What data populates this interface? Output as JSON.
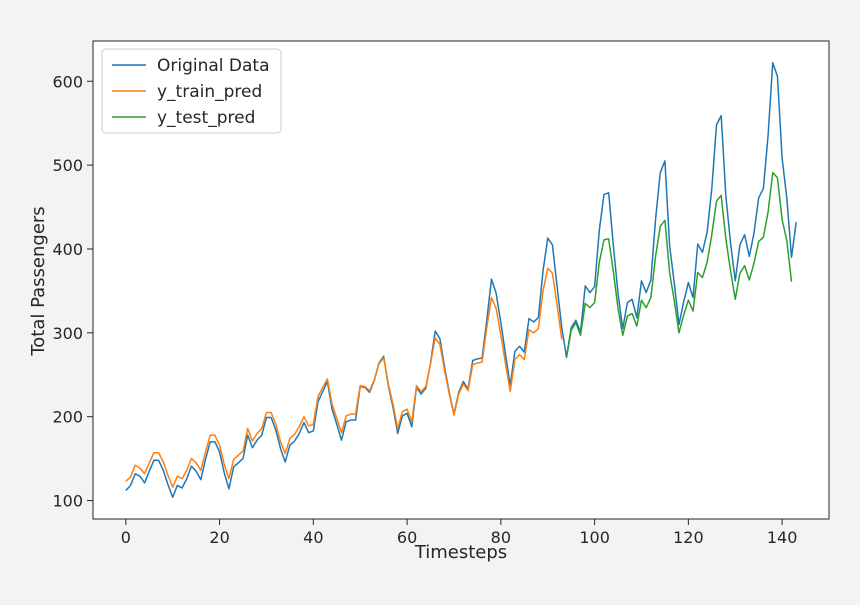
{
  "chart_data": {
    "type": "line",
    "title": "",
    "xlabel": "Timesteps",
    "ylabel": "Total Passengers",
    "xlim": [
      -7,
      150
    ],
    "ylim": [
      78,
      648
    ],
    "xticks": [
      0,
      20,
      40,
      60,
      80,
      100,
      120,
      140
    ],
    "yticks": [
      100,
      200,
      300,
      400,
      500,
      600
    ],
    "grid": false,
    "legend_position": "upper-left",
    "colors": {
      "original": "#1f77b4",
      "train": "#ff7f0e",
      "test": "#2ca02c",
      "plot_background": "#ffffff",
      "page_background": "#f3f3f3",
      "axes": "#262626"
    },
    "series": [
      {
        "name": "Original Data",
        "x_start": 0,
        "values": [
          112,
          118,
          132,
          129,
          121,
          135,
          148,
          148,
          136,
          119,
          104,
          118,
          115,
          126,
          141,
          135,
          125,
          149,
          170,
          170,
          158,
          133,
          114,
          140,
          145,
          150,
          178,
          163,
          172,
          178,
          199,
          199,
          184,
          162,
          146,
          166,
          171,
          180,
          193,
          181,
          183,
          218,
          230,
          242,
          209,
          191,
          172,
          194,
          196,
          196,
          236,
          235,
          229,
          243,
          264,
          272,
          237,
          211,
          180,
          201,
          204,
          188,
          235,
          227,
          234,
          264,
          302,
          293,
          259,
          229,
          203,
          229,
          242,
          233,
          267,
          269,
          270,
          315,
          364,
          347,
          312,
          274,
          237,
          278,
          284,
          277,
          317,
          313,
          318,
          374,
          413,
          405,
          355,
          306,
          271,
          306,
          315,
          301,
          356,
          348,
          355,
          422,
          465,
          467,
          404,
          347,
          305,
          336,
          340,
          318,
          362,
          348,
          363,
          435,
          491,
          505,
          404,
          359,
          310,
          337,
          360,
          342,
          406,
          396,
          420,
          472,
          548,
          559,
          463,
          407,
          362,
          405,
          417,
          391,
          419,
          461,
          472,
          535,
          622,
          606,
          508,
          461,
          390,
          432
        ]
      },
      {
        "name": "y_train_pred",
        "x_start": 0,
        "values": [
          123,
          128,
          142,
          139,
          132,
          145,
          157,
          157,
          146,
          130,
          116,
          129,
          126,
          136,
          150,
          145,
          136,
          158,
          178,
          178,
          166,
          143,
          126,
          149,
          154,
          159,
          186,
          171,
          180,
          186,
          205,
          205,
          191,
          170,
          156,
          174,
          179,
          188,
          200,
          189,
          191,
          224,
          235,
          245,
          215,
          198,
          181,
          201,
          203,
          203,
          237,
          236,
          231,
          244,
          263,
          270,
          239,
          215,
          186,
          206,
          209,
          194,
          237,
          230,
          236,
          263,
          294,
          286,
          255,
          227,
          202,
          227,
          239,
          231,
          262,
          264,
          265,
          306,
          342,
          329,
          297,
          263,
          230,
          268,
          274,
          268,
          304,
          300,
          305,
          350,
          377,
          371,
          333,
          292
        ]
      },
      {
        "name": "y_test_pred",
        "x_start": 94,
        "values": [
          270,
          303,
          312,
          297,
          335,
          330,
          336,
          384,
          411,
          412,
          373,
          329,
          297,
          320,
          323,
          308,
          339,
          330,
          342,
          391,
          427,
          434,
          372,
          338,
          300,
          321,
          339,
          326,
          372,
          366,
          384,
          417,
          457,
          464,
          412,
          374,
          340,
          371,
          380,
          363,
          383,
          409,
          414,
          444,
          491,
          485,
          435,
          410,
          361
        ]
      }
    ]
  }
}
